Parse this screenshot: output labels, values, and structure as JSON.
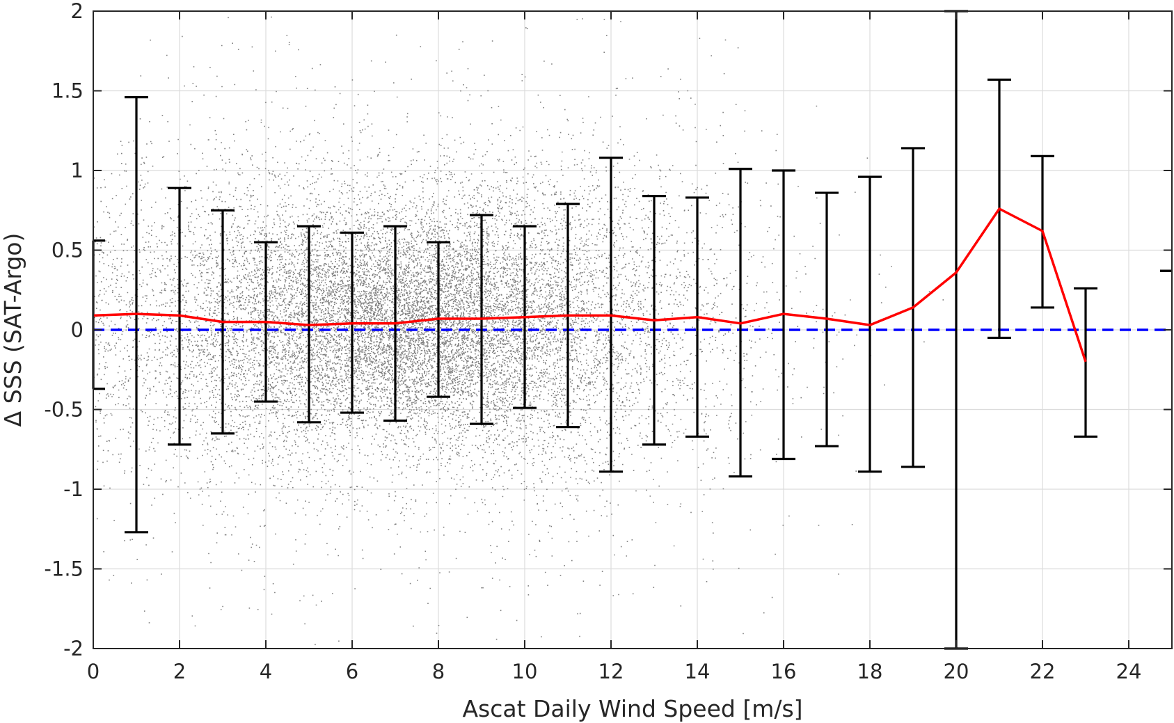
{
  "chart_data": {
    "type": "scatter",
    "title": "",
    "xlabel": "Ascat Daily Wind Speed [m/s]",
    "ylabel": "Δ SSS (SAT-Argo)",
    "xlim": [
      0,
      25
    ],
    "ylim": [
      -2,
      2
    ],
    "xticks": [
      "0",
      "2",
      "4",
      "6",
      "8",
      "10",
      "12",
      "14",
      "16",
      "18",
      "20",
      "22",
      "24"
    ],
    "yticks": [
      "-2",
      "-1.5",
      "-1",
      "-0.5",
      "0",
      "0.5",
      "1",
      "1.5",
      "2"
    ],
    "grid": true,
    "legend": "none",
    "colors": {
      "scatter": "#808080",
      "mean_line": "#ff0000",
      "zero_line": "#0000ff",
      "error_bars": "#000000",
      "grid": "#dcdcdc",
      "axis": "#262626"
    },
    "scatter_description": "dense cloud of individual matchups, densest between 4 and 11 m/s and within ±0.6",
    "mean_line": {
      "x": [
        0,
        1,
        2,
        3,
        4,
        5,
        6,
        7,
        8,
        9,
        10,
        11,
        12,
        13,
        14,
        15,
        16,
        17,
        18,
        19,
        20,
        21,
        22,
        23
      ],
      "y": [
        0.09,
        0.1,
        0.09,
        0.05,
        0.05,
        0.03,
        0.04,
        0.04,
        0.07,
        0.07,
        0.08,
        0.09,
        0.09,
        0.06,
        0.08,
        0.04,
        0.1,
        0.07,
        0.03,
        0.14,
        0.36,
        0.76,
        0.62,
        -0.2
      ]
    },
    "error_bars": [
      {
        "x": 0,
        "low": -0.37,
        "high": 0.56
      },
      {
        "x": 1,
        "low": -1.27,
        "high": 1.46
      },
      {
        "x": 2,
        "low": -0.72,
        "high": 0.89
      },
      {
        "x": 3,
        "low": -0.65,
        "high": 0.75
      },
      {
        "x": 4,
        "low": -0.45,
        "high": 0.55
      },
      {
        "x": 5,
        "low": -0.58,
        "high": 0.65
      },
      {
        "x": 6,
        "low": -0.52,
        "high": 0.61
      },
      {
        "x": 7,
        "low": -0.57,
        "high": 0.65
      },
      {
        "x": 8,
        "low": -0.42,
        "high": 0.55
      },
      {
        "x": 9,
        "low": -0.59,
        "high": 0.72
      },
      {
        "x": 10,
        "low": -0.49,
        "high": 0.65
      },
      {
        "x": 11,
        "low": -0.61,
        "high": 0.79
      },
      {
        "x": 12,
        "low": -0.89,
        "high": 1.08
      },
      {
        "x": 13,
        "low": -0.72,
        "high": 0.84
      },
      {
        "x": 14,
        "low": -0.67,
        "high": 0.83
      },
      {
        "x": 15,
        "low": -0.92,
        "high": 1.01
      },
      {
        "x": 16,
        "low": -0.81,
        "high": 1.0
      },
      {
        "x": 17,
        "low": -0.73,
        "high": 0.86
      },
      {
        "x": 18,
        "low": -0.89,
        "high": 0.96
      },
      {
        "x": 19,
        "low": -0.86,
        "high": 1.14
      },
      {
        "x": 20,
        "low": -2.0,
        "high": 2.0
      },
      {
        "x": 21,
        "low": -0.05,
        "high": 1.57
      },
      {
        "x": 22,
        "low": 0.14,
        "high": 1.09
      },
      {
        "x": 23,
        "low": -0.67,
        "high": 0.26
      },
      {
        "x": 25,
        "low": 0.37,
        "high": 0.37
      }
    ],
    "zero_reference": 0
  }
}
